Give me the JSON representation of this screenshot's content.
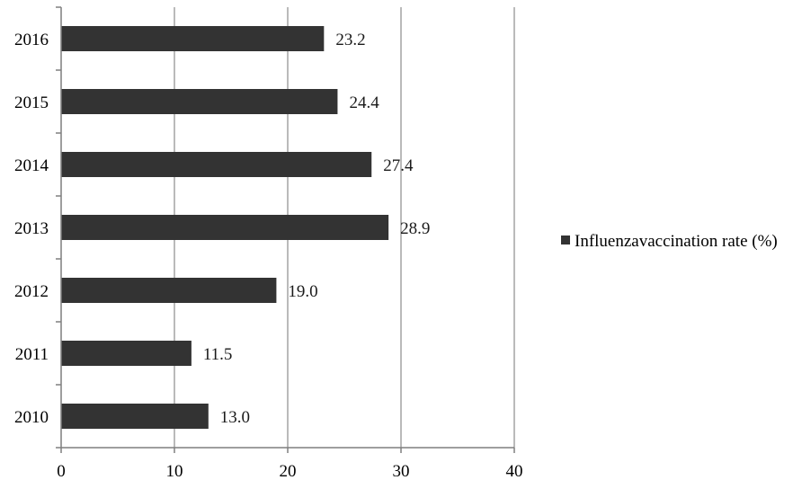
{
  "chart_data": {
    "type": "bar",
    "orientation": "horizontal",
    "categories": [
      "2016",
      "2015",
      "2014",
      "2013",
      "2012",
      "2011",
      "2010"
    ],
    "series": [
      {
        "name": "Influenzavaccination rate (%)",
        "values": [
          23.2,
          24.4,
          27.4,
          28.9,
          19.0,
          11.5,
          13.0
        ],
        "labels": [
          "23.2",
          "24.4",
          "27.4",
          "28.9",
          "19.0",
          "11.5",
          "13.0"
        ],
        "color": "#333333"
      }
    ],
    "xlim": [
      0,
      40
    ],
    "xticks": [
      "0",
      "10",
      "20",
      "30",
      "40"
    ],
    "grid": "vertical",
    "legend_position": "right"
  }
}
